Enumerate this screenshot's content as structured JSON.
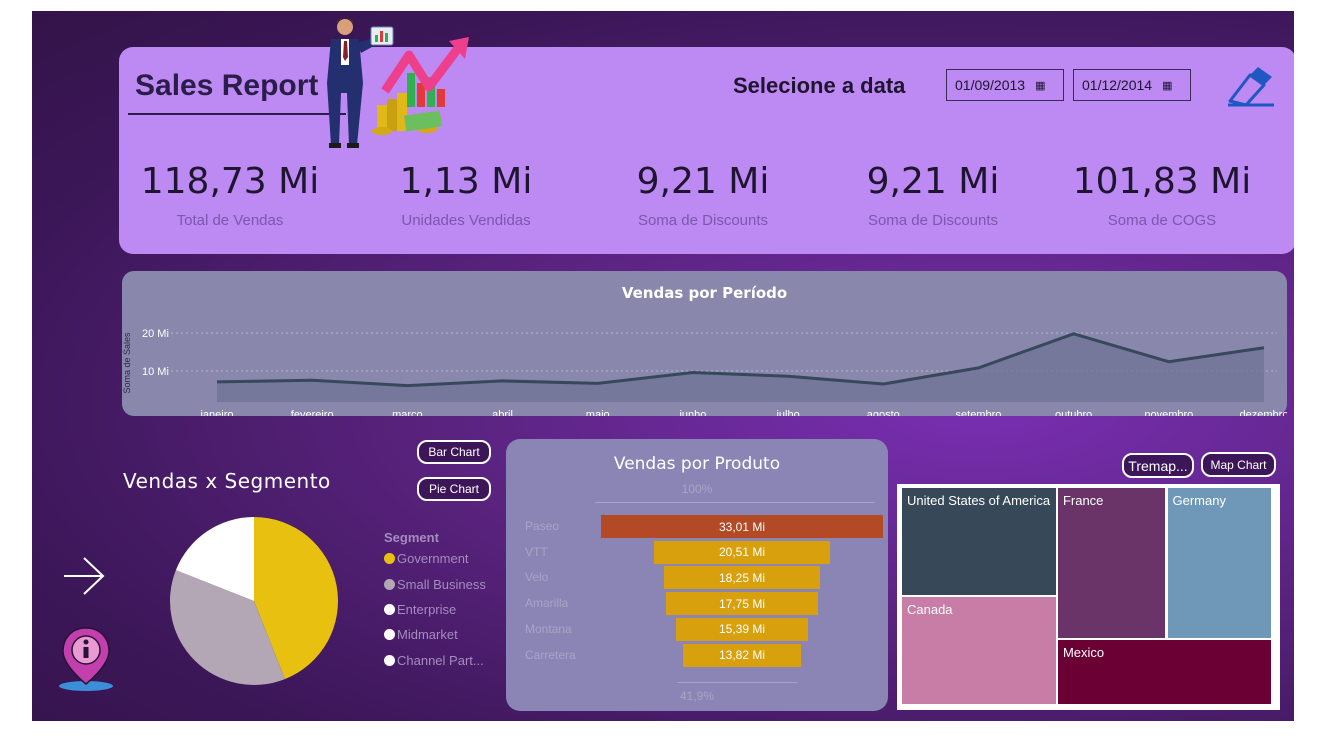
{
  "header": {
    "title": "Sales Report",
    "date_label": "Selecione a data",
    "date_start": "01/09/2013",
    "date_end": "01/12/2014",
    "eraser_icon": "eraser-icon",
    "illustration": "businessman-chart-illustration"
  },
  "kpis": [
    {
      "value": "118,73 Mi",
      "label": "Total de Vendas"
    },
    {
      "value": "1,13 Mi",
      "label": "Unidades Vendidas"
    },
    {
      "value": "9,21 Mi",
      "label": "Soma de Discounts"
    },
    {
      "value": "9,21 Mi",
      "label": "Soma de Discounts"
    },
    {
      "value": "101,83 Mi",
      "label": "Soma de COGS"
    }
  ],
  "line_chart": {
    "title": "Vendas por Período",
    "ylabel": "Soma de Sales",
    "yticks": [
      "20 Mi",
      "10 Mi"
    ]
  },
  "segment": {
    "title": "Vendas x Segmento",
    "bar_chart_button": "Bar Chart",
    "pie_chart_button": "Pie Chart",
    "legend_title": "Segment",
    "legend": [
      {
        "label": "Government",
        "color": "#e8c010"
      },
      {
        "label": "Small Business",
        "color": "#b3a6b5"
      },
      {
        "label": "Enterprise",
        "color": "#ffffff"
      },
      {
        "label": "Midmarket",
        "color": "#ffffff"
      },
      {
        "label": "Channel Part...",
        "color": "#ffffff"
      }
    ]
  },
  "product": {
    "title": "Vendas por Produto",
    "top_pct": "100%",
    "bottom_pct": "41,9%"
  },
  "map_section": {
    "treemap_button": "Tremap...",
    "map_chart_button": "Map Chart"
  },
  "nav": {
    "next_icon": "arrow-right-icon",
    "info_icon": "info-pin-icon"
  },
  "chart_data": [
    {
      "type": "area",
      "title": "Vendas por Período",
      "ylabel": "Soma de Sales",
      "x": [
        "janeiro",
        "fevereiro",
        "março",
        "abril",
        "maio",
        "junho",
        "julho",
        "agosto",
        "setembro",
        "outubro",
        "novembro",
        "dezembro"
      ],
      "values": [
        6.5,
        7.0,
        5.3,
        6.8,
        6.0,
        9.5,
        8.3,
        5.8,
        11.0,
        22.0,
        13.0,
        17.5
      ],
      "unit": "Mi",
      "ylim": [
        0,
        24
      ],
      "grid": true,
      "color": "#36485a"
    },
    {
      "type": "pie",
      "title": "Vendas x Segmento",
      "labels": [
        "Government",
        "Small Business",
        "Enterprise",
        "Midmarket",
        "Channel Part..."
      ],
      "values": [
        44,
        37,
        19,
        0,
        0
      ],
      "colors": [
        "#e8c010",
        "#b3a6b5",
        "#ffffff",
        "#ffffff",
        "#ffffff"
      ]
    },
    {
      "type": "bar",
      "title": "Vendas por Produto",
      "categories": [
        "Paseo",
        "VTT",
        "Velo",
        "Amarilla",
        "Montana",
        "Carretera"
      ],
      "values": [
        33.01,
        20.51,
        18.25,
        17.75,
        15.39,
        13.82
      ],
      "labels": [
        "33,01 Mi",
        "20,51 Mi",
        "18,25 Mi",
        "17,75 Mi",
        "15,39 Mi",
        "13,82 Mi"
      ],
      "colors": [
        "#b34a25",
        "#d9a00d",
        "#d9a00d",
        "#d9a00d",
        "#d9a00d",
        "#d9a00d"
      ]
    },
    {
      "type": "treemap",
      "labels": [
        "United States of America",
        "France",
        "Germany",
        "Canada",
        "Mexico"
      ],
      "values": [
        25.0,
        24.4,
        23.5,
        24.9,
        20.9
      ],
      "colors": [
        "#374958",
        "#6a3468",
        "#6f98b8",
        "#c87da7",
        "#6b0035"
      ]
    }
  ]
}
